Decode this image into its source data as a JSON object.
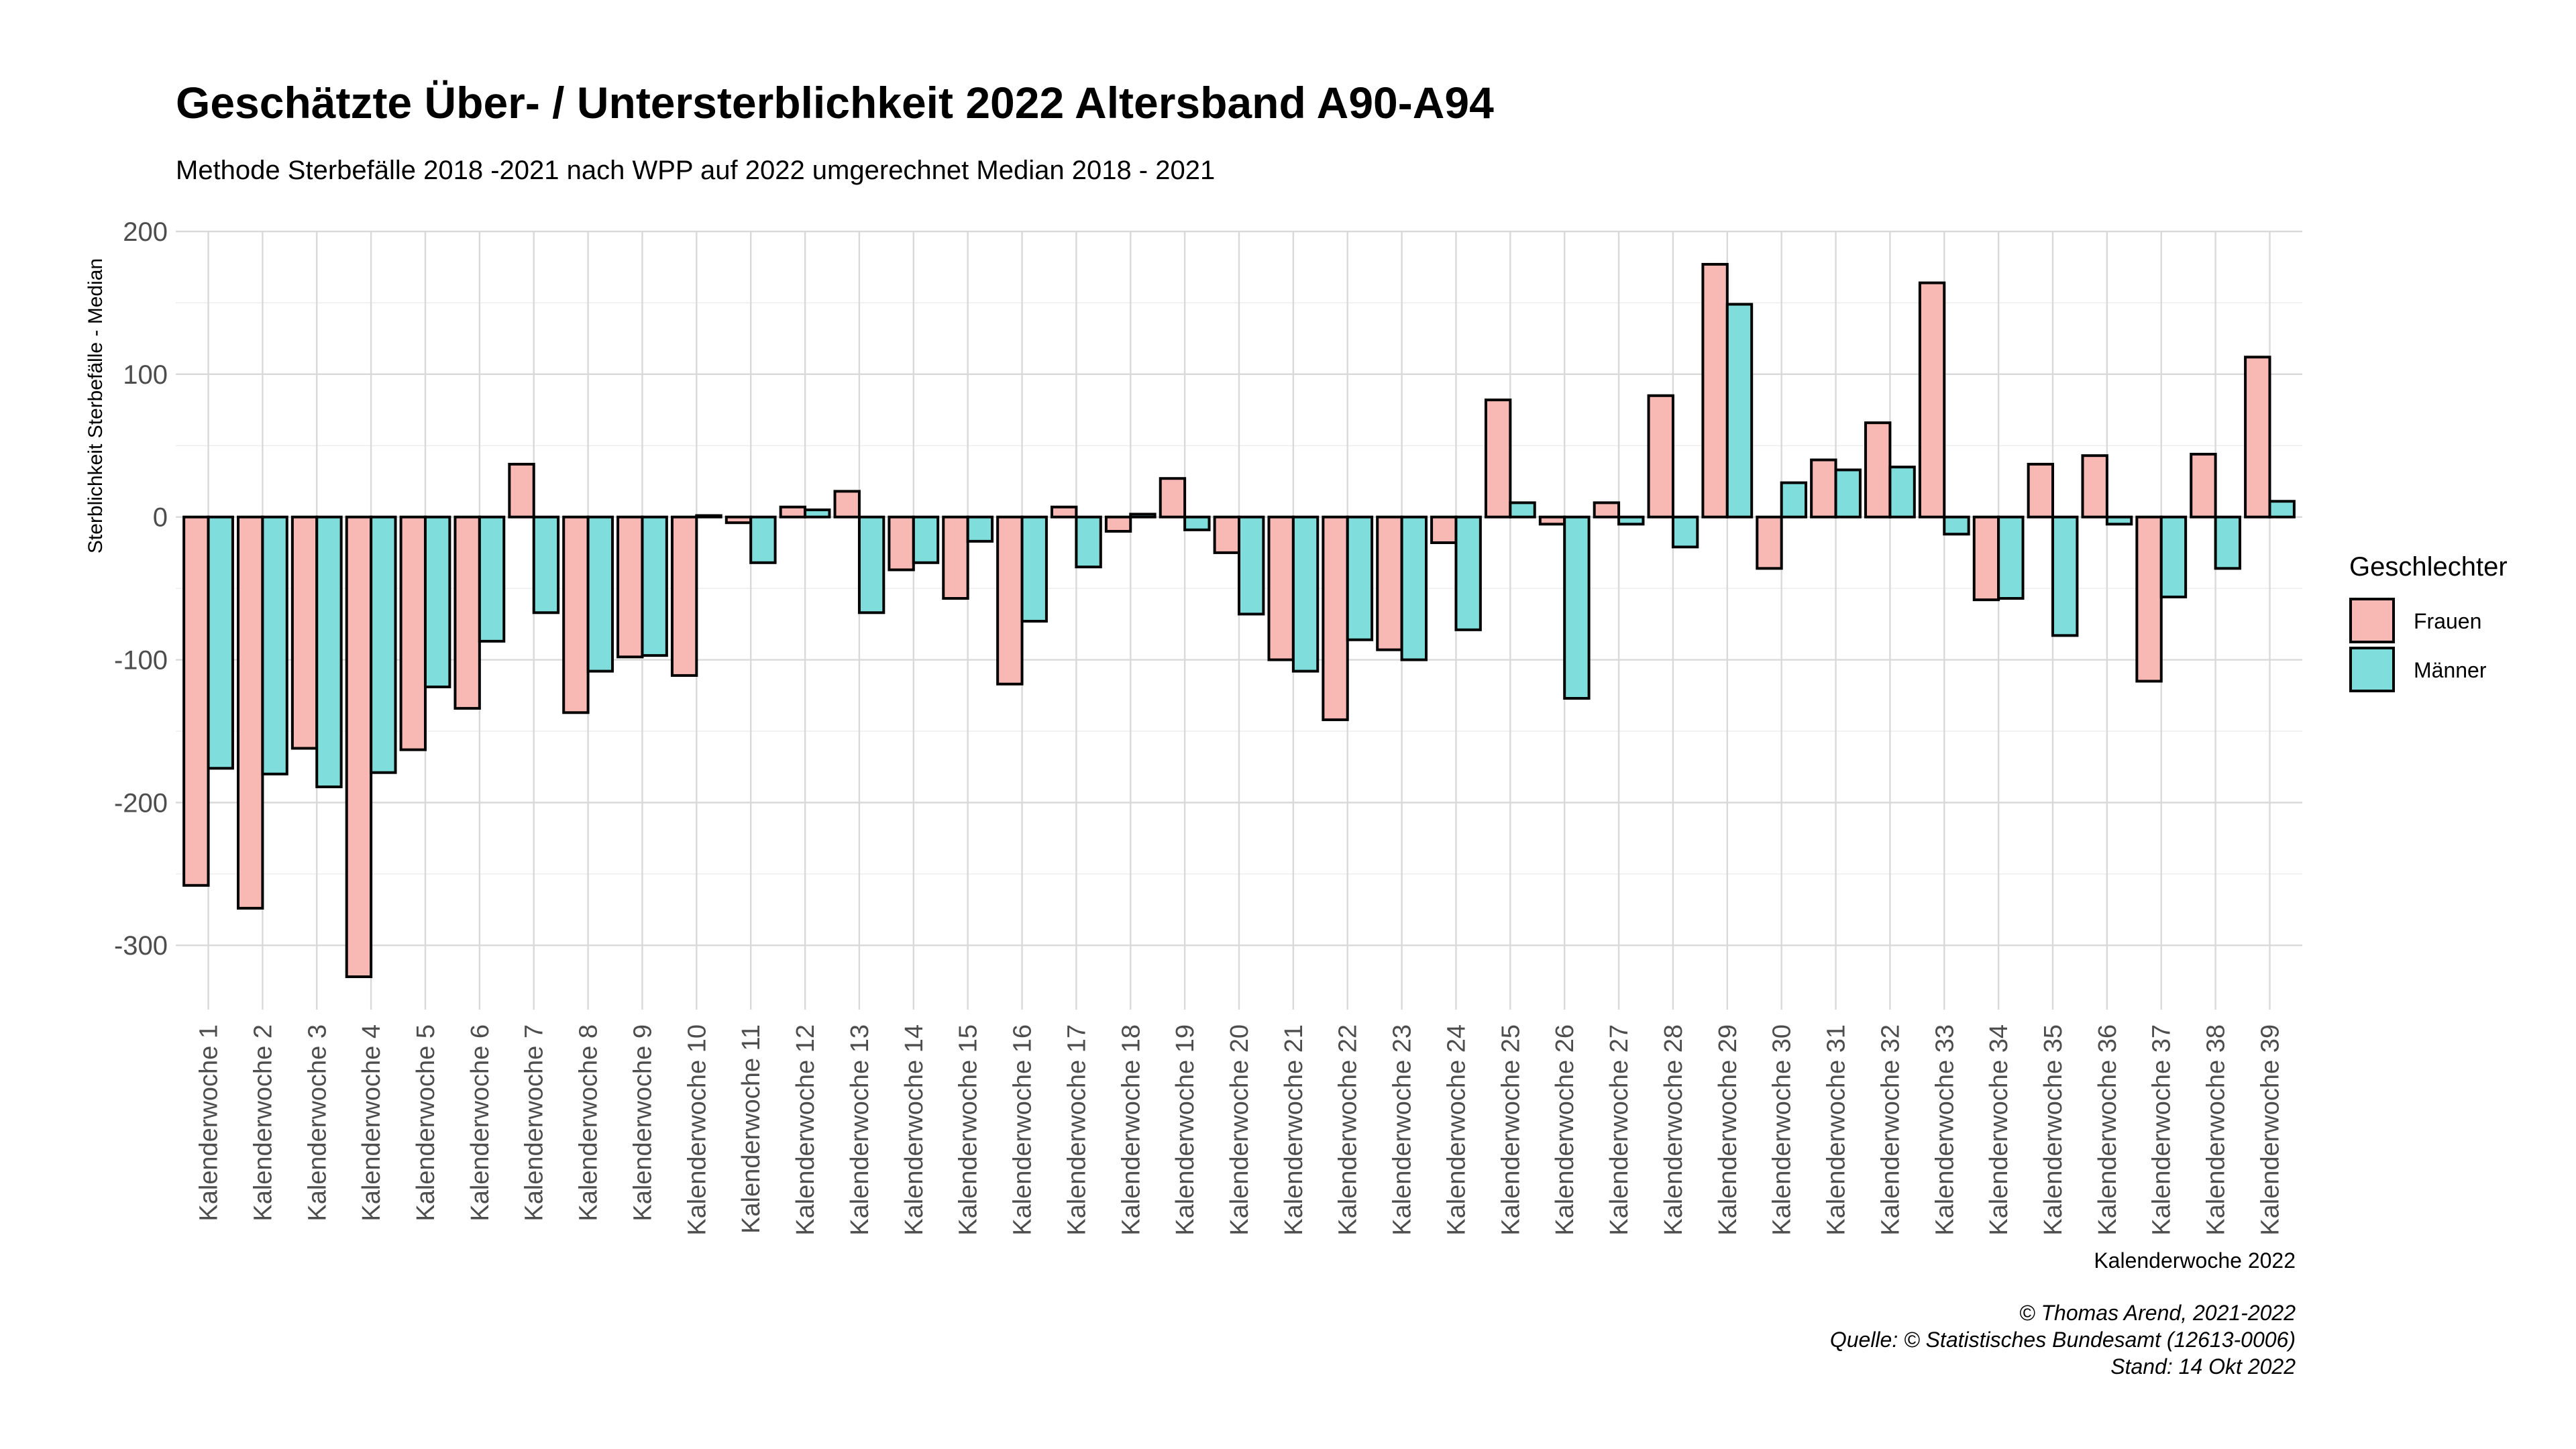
{
  "chart_data": {
    "type": "bar",
    "title": "Geschätzte Über- / Untersterblichkeit 2022 Altersband A90-A94",
    "subtitle": "Methode Sterbefälle 2018 -2021 nach WPP auf 2022 umgerechnet Median 2018 - 2021",
    "xlabel": "Kalenderwoche 2022",
    "ylabel": "Sterblichkeit Sterbefälle - Median",
    "ylim": [
      -345,
      200
    ],
    "yticks": [
      200,
      100,
      0,
      -100,
      -200,
      -300
    ],
    "grid": true,
    "legend": {
      "title": "Geschlechter",
      "position": "right"
    },
    "categories": [
      "Kalenderwoche 1",
      "Kalenderwoche 2",
      "Kalenderwoche 3",
      "Kalenderwoche 4",
      "Kalenderwoche 5",
      "Kalenderwoche 6",
      "Kalenderwoche 7",
      "Kalenderwoche 8",
      "Kalenderwoche 9",
      "Kalenderwoche 10",
      "Kalenderwoche 11",
      "Kalenderwoche 12",
      "Kalenderwoche 13",
      "Kalenderwoche 14",
      "Kalenderwoche 15",
      "Kalenderwoche 16",
      "Kalenderwoche 17",
      "Kalenderwoche 18",
      "Kalenderwoche 19",
      "Kalenderwoche 20",
      "Kalenderwoche 21",
      "Kalenderwoche 22",
      "Kalenderwoche 23",
      "Kalenderwoche 24",
      "Kalenderwoche 25",
      "Kalenderwoche 26",
      "Kalenderwoche 27",
      "Kalenderwoche 28",
      "Kalenderwoche 29",
      "Kalenderwoche 30",
      "Kalenderwoche 31",
      "Kalenderwoche 32",
      "Kalenderwoche 33",
      "Kalenderwoche 34",
      "Kalenderwoche 35",
      "Kalenderwoche 36",
      "Kalenderwoche 37",
      "Kalenderwoche 38",
      "Kalenderwoche 39"
    ],
    "series": [
      {
        "name": "Frauen",
        "color": "#F8B8B3",
        "values": [
          -258,
          -274,
          -162,
          -322,
          -163,
          -134,
          37,
          -137,
          -98,
          -111,
          -4,
          7,
          18,
          -37,
          -57,
          -117,
          7,
          -10,
          27,
          -25,
          -100,
          -142,
          -93,
          -18,
          82,
          -5,
          10,
          85,
          177,
          -36,
          40,
          66,
          164,
          -58,
          37,
          43,
          -115,
          44,
          112
        ]
      },
      {
        "name": "Männer",
        "color": "#7FDDDB",
        "values": [
          -176,
          -180,
          -189,
          -179,
          -119,
          -87,
          -67,
          -108,
          -97,
          1,
          -32,
          5,
          -67,
          -32,
          -17,
          -73,
          -35,
          2,
          -9,
          -68,
          -108,
          -86,
          -100,
          -79,
          10,
          -127,
          -5,
          -21,
          149,
          24,
          33,
          35,
          -12,
          -57,
          -83,
          -5,
          -56,
          -36,
          11
        ]
      }
    ]
  },
  "caption": {
    "line1": "© Thomas Arend, 2021-2022",
    "line2": "Quelle: © Statistisches Bundesamt (12613-0006)",
    "line3": "Stand: 14 Okt 2022"
  }
}
